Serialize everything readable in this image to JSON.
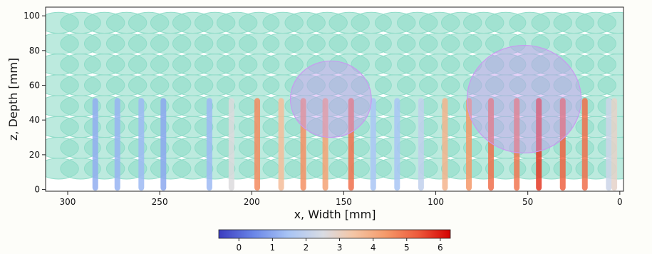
{
  "chart_data": {
    "type": "scatter",
    "title": "",
    "xlabel": "x, Width [mm]",
    "ylabel": "z, Depth [mm]",
    "xlim": [
      312,
      -2
    ],
    "ylim": [
      -1,
      105
    ],
    "xticks": [
      300,
      250,
      200,
      150,
      100,
      50,
      0
    ],
    "yticks": [
      0,
      20,
      40,
      60,
      80,
      100
    ],
    "x_inverted": true,
    "grid": false,
    "colors": {
      "grid_holes": "#8fdcc8",
      "inclusion": "#c89af0"
    },
    "colorbar": {
      "min": -0.6,
      "max": 6.3,
      "ticks": [
        0,
        1,
        2,
        3,
        4,
        5,
        6
      ],
      "colormap": "coolwarm",
      "placement": "bottom"
    },
    "grid_holes": {
      "x": [
        305,
        293,
        280,
        268,
        256,
        244,
        232,
        220,
        208,
        196,
        183,
        171,
        159,
        147,
        135,
        122,
        110,
        98,
        86,
        74,
        62,
        49,
        37,
        25,
        13,
        1
      ],
      "z": [
        96,
        84,
        72,
        60,
        48,
        36,
        24,
        12
      ],
      "radius": 4.2
    },
    "inclusions": [
      {
        "cx": 157,
        "cz": 52,
        "r": 22
      },
      {
        "cx": 52,
        "cz": 52,
        "r": 31
      }
    ],
    "scan_lines": [
      {
        "x": 285,
        "z_top": 51,
        "z_bottom": 1,
        "value": 1.1
      },
      {
        "x": 273,
        "z_top": 51,
        "z_bottom": 1,
        "value": 1.2
      },
      {
        "x": 260,
        "z_top": 51,
        "z_bottom": 1,
        "value": 1.3
      },
      {
        "x": 248,
        "z_top": 51,
        "z_bottom": 1,
        "value": 1.0
      },
      {
        "x": 223,
        "z_top": 51,
        "z_bottom": 1,
        "value": 1.3
      },
      {
        "x": 211,
        "z_top": 51,
        "z_bottom": 1,
        "value": 2.6
      },
      {
        "x": 197,
        "z_top": 51,
        "z_bottom": 1,
        "value": 4.6
      },
      {
        "x": 184,
        "z_top": 51,
        "z_bottom": 1,
        "value": 3.6
      },
      {
        "x": 172,
        "z_top": 51,
        "z_bottom": 1,
        "value": 4.5
      },
      {
        "x": 160,
        "z_top": 51,
        "z_bottom": 1,
        "value": 4.2
      },
      {
        "x": 146,
        "z_top": 51,
        "z_bottom": 1,
        "value": 5.0
      },
      {
        "x": 134,
        "z_top": 51,
        "z_bottom": 1,
        "value": 1.5
      },
      {
        "x": 121,
        "z_top": 51,
        "z_bottom": 1,
        "value": 1.5
      },
      {
        "x": 108,
        "z_top": 51,
        "z_bottom": 1,
        "value": 2.0
      },
      {
        "x": 95,
        "z_top": 51,
        "z_bottom": 1,
        "value": 3.8
      },
      {
        "x": 82,
        "z_top": 51,
        "z_bottom": 1,
        "value": 4.4
      },
      {
        "x": 70,
        "z_top": 51,
        "z_bottom": 1,
        "value": 5.0
      },
      {
        "x": 56,
        "z_top": 51,
        "z_bottom": 1,
        "value": 4.9
      },
      {
        "x": 44,
        "z_top": 51,
        "z_bottom": 1,
        "value": 5.7
      },
      {
        "x": 31,
        "z_top": 51,
        "z_bottom": 1,
        "value": 5.2
      },
      {
        "x": 19,
        "z_top": 51,
        "z_bottom": 1,
        "value": 5.0
      },
      {
        "x": 6,
        "z_top": 51,
        "z_bottom": 1,
        "value": 2.2
      },
      {
        "x": 3,
        "z_top": 51,
        "z_bottom": 1,
        "value": 2.9
      }
    ]
  }
}
